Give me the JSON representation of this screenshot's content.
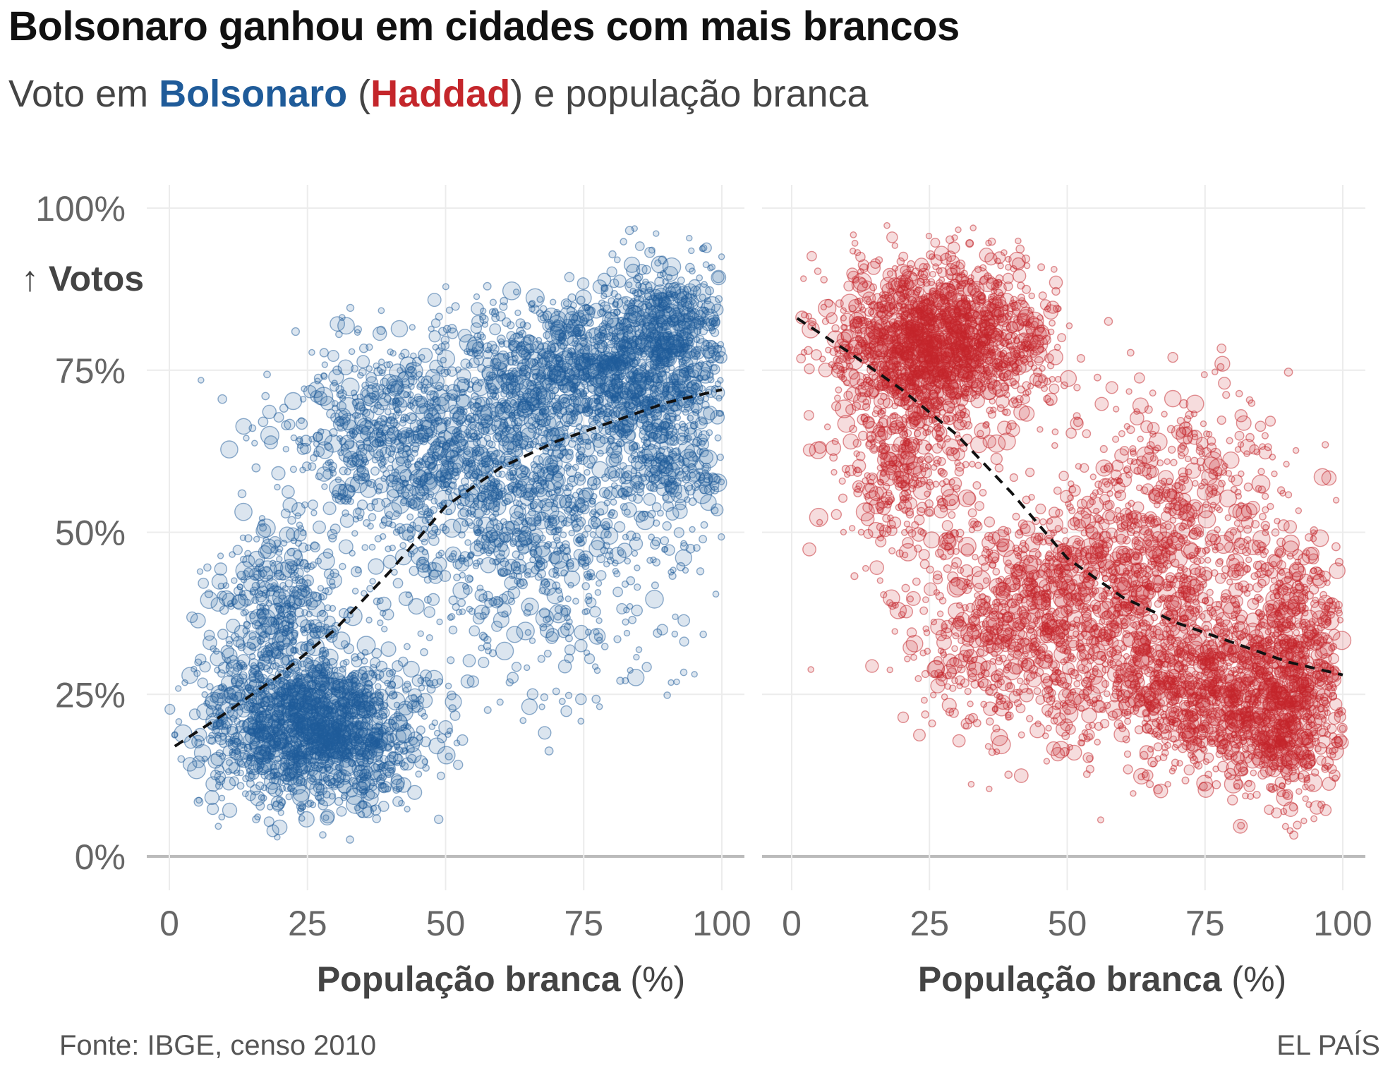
{
  "title": "Bolsonaro ganhou em cidades com mais brancos",
  "subtitle": {
    "prefix": "Voto em ",
    "name1": "Bolsonaro",
    "open": " (",
    "name2": "Haddad",
    "suffix": ") e população branca"
  },
  "ylabel": "↑ Votos",
  "source": "Fonte: IBGE, censo 2010",
  "brand": "EL PAÍS",
  "colors": {
    "bolsonaro": "#1f5b99",
    "haddad": "#c4262b",
    "grid": "#ececec",
    "baseline": "#bbbbbb",
    "trend": "#111111"
  },
  "chart_data": [
    {
      "type": "scatter",
      "panel": "left",
      "series_name": "Bolsonaro",
      "color": "#1f5b99",
      "xlabel_bold": "População branca",
      "xlabel_unit": "(%)",
      "xlim": [
        0,
        100
      ],
      "ylim": [
        0,
        100
      ],
      "xticks": [
        0,
        25,
        50,
        75,
        100
      ],
      "yticks": [
        0,
        25,
        50,
        75,
        100
      ],
      "ytick_labels": [
        "0%",
        "25%",
        "50%",
        "75%",
        "100%"
      ],
      "grid": true,
      "trend": {
        "style": "dashed",
        "x": [
          1,
          10,
          20,
          30,
          40,
          45,
          50,
          55,
          60,
          70,
          80,
          90,
          100
        ],
        "y": [
          17,
          22,
          28,
          35,
          44,
          49,
          54,
          57,
          60,
          64,
          67,
          70,
          72
        ]
      },
      "clusters": [
        {
          "cx": 22,
          "cy": 20,
          "sx": 8,
          "sy": 6,
          "n": 900
        },
        {
          "cx": 32,
          "cy": 20,
          "sx": 8,
          "sy": 6,
          "n": 700
        },
        {
          "cx": 20,
          "cy": 38,
          "sx": 6,
          "sy": 8,
          "n": 400
        },
        {
          "cx": 40,
          "cy": 65,
          "sx": 10,
          "sy": 8,
          "n": 600
        },
        {
          "cx": 60,
          "cy": 60,
          "sx": 12,
          "sy": 10,
          "n": 800
        },
        {
          "cx": 75,
          "cy": 75,
          "sx": 10,
          "sy": 6,
          "n": 800
        },
        {
          "cx": 90,
          "cy": 80,
          "sx": 6,
          "sy": 6,
          "n": 500
        },
        {
          "cx": 90,
          "cy": 65,
          "sx": 6,
          "sy": 8,
          "n": 400
        },
        {
          "cx": 70,
          "cy": 45,
          "sx": 12,
          "sy": 10,
          "n": 400
        }
      ]
    },
    {
      "type": "scatter",
      "panel": "right",
      "series_name": "Haddad",
      "color": "#c4262b",
      "xlabel_bold": "População branca",
      "xlabel_unit": "(%)",
      "xlim": [
        0,
        100
      ],
      "ylim": [
        0,
        100
      ],
      "xticks": [
        0,
        25,
        50,
        75,
        100
      ],
      "yticks": [
        0,
        25,
        50,
        75,
        100
      ],
      "grid": true,
      "trend": {
        "style": "dashed",
        "x": [
          1,
          10,
          20,
          30,
          40,
          45,
          50,
          55,
          60,
          70,
          80,
          90,
          100
        ],
        "y": [
          83,
          78,
          72,
          65,
          56,
          51,
          46,
          43,
          40,
          36,
          33,
          30,
          28
        ]
      },
      "clusters": [
        {
          "cx": 22,
          "cy": 80,
          "sx": 8,
          "sy": 6,
          "n": 900
        },
        {
          "cx": 32,
          "cy": 80,
          "sx": 8,
          "sy": 6,
          "n": 700
        },
        {
          "cx": 20,
          "cy": 62,
          "sx": 6,
          "sy": 8,
          "n": 400
        },
        {
          "cx": 40,
          "cy": 35,
          "sx": 10,
          "sy": 8,
          "n": 600
        },
        {
          "cx": 60,
          "cy": 40,
          "sx": 12,
          "sy": 10,
          "n": 800
        },
        {
          "cx": 75,
          "cy": 25,
          "sx": 10,
          "sy": 6,
          "n": 800
        },
        {
          "cx": 90,
          "cy": 20,
          "sx": 6,
          "sy": 6,
          "n": 500
        },
        {
          "cx": 90,
          "cy": 35,
          "sx": 6,
          "sy": 8,
          "n": 400
        },
        {
          "cx": 70,
          "cy": 55,
          "sx": 12,
          "sy": 10,
          "n": 400
        }
      ]
    }
  ]
}
